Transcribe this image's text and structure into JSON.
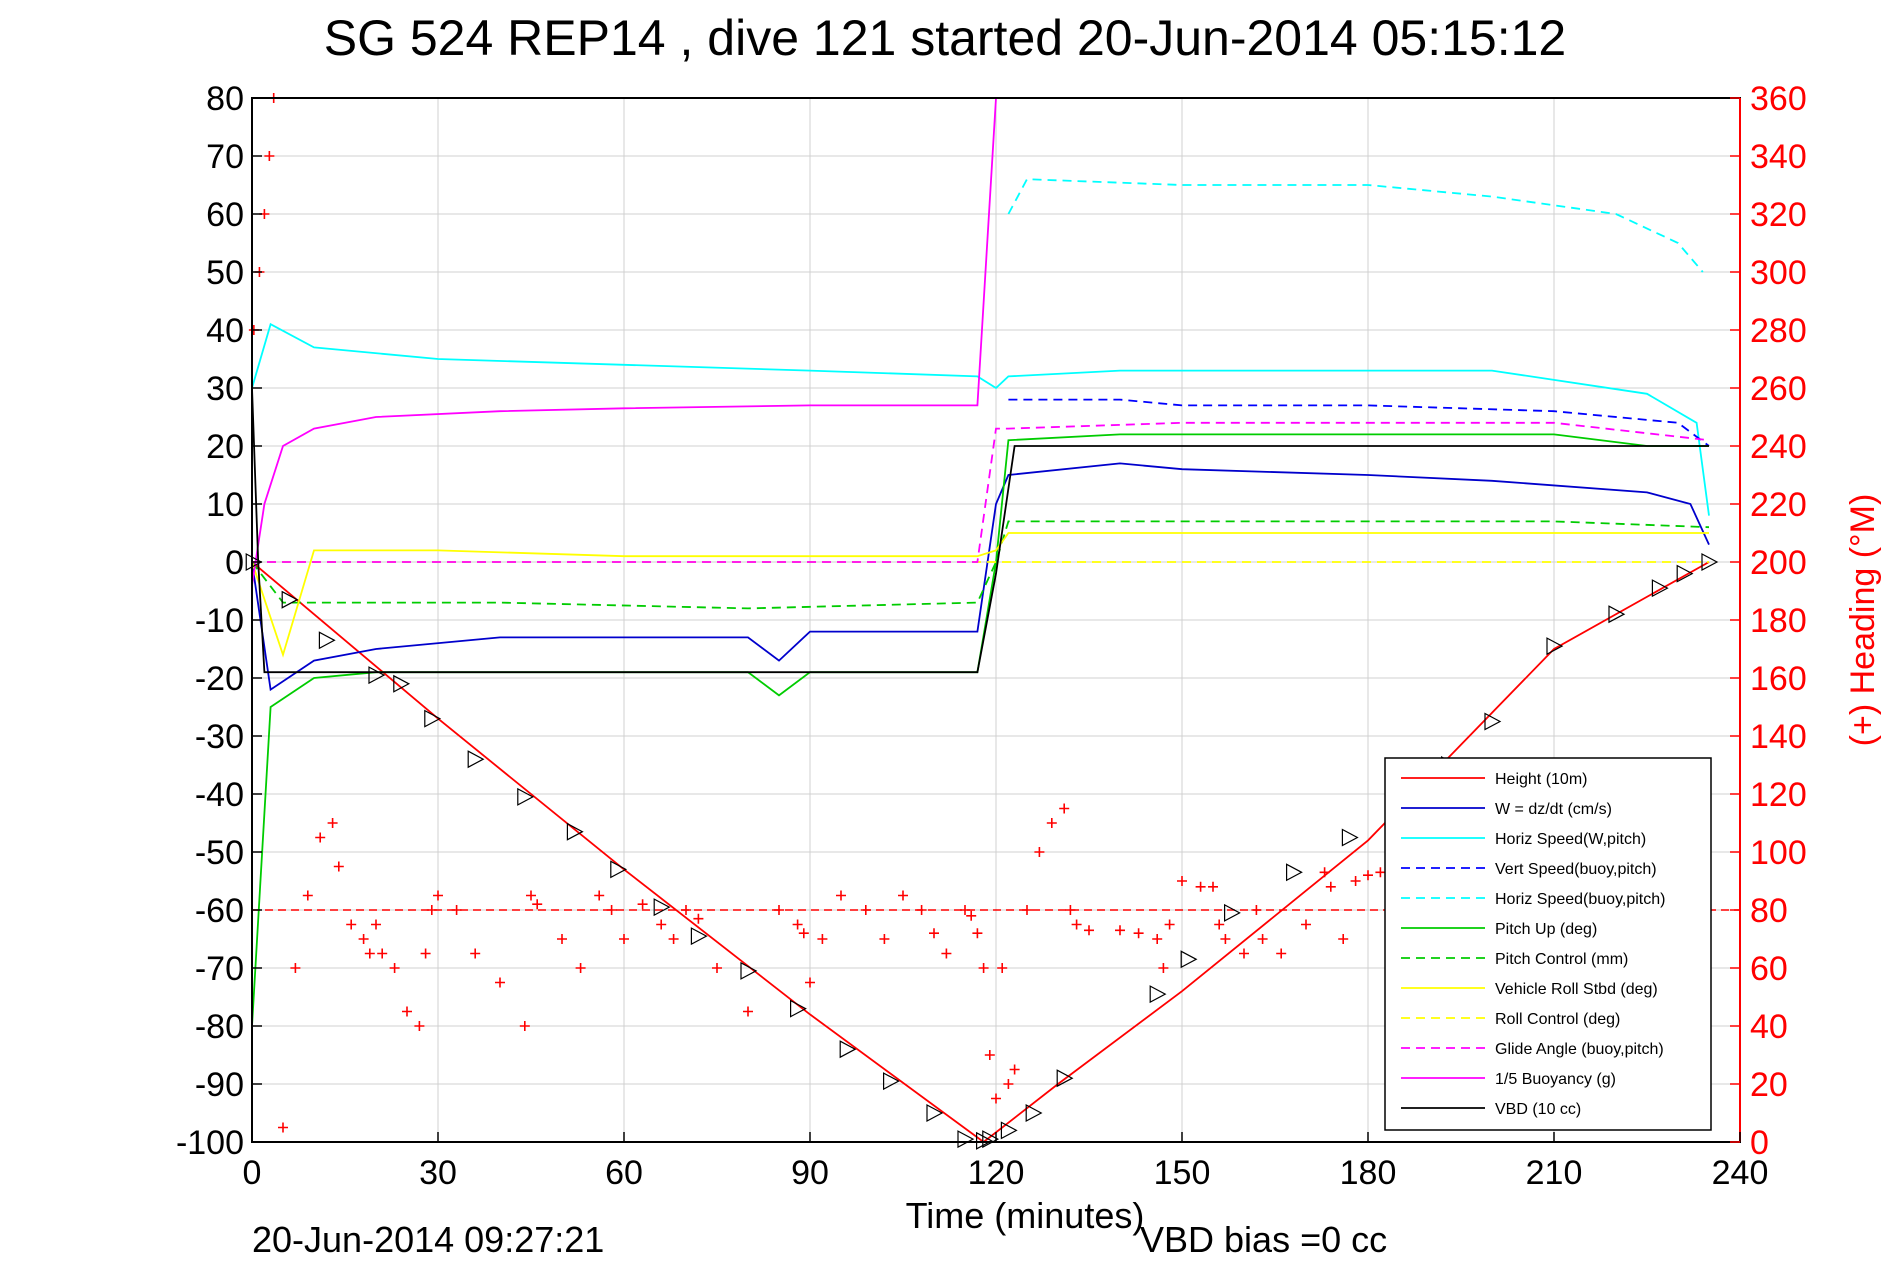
{
  "chart_data": {
    "type": "line",
    "title": "SG 524   REP14  , dive 121 started 20-Jun-2014 05:15:12",
    "xlabel": "Time (minutes)",
    "ylabel_right": "(+) Heading (°M)",
    "xlim": [
      0,
      240
    ],
    "ylim_left": [
      -100,
      80
    ],
    "ylim_right": [
      0,
      360
    ],
    "x_ticks": [
      "0",
      "30",
      "60",
      "90",
      "120",
      "150",
      "180",
      "210",
      "240"
    ],
    "y_ticks_left": [
      "80",
      "70",
      "60",
      "50",
      "40",
      "30",
      "20",
      "10",
      "0",
      "-10",
      "-20",
      "-30",
      "-40",
      "-50",
      "-60",
      "-70",
      "-80",
      "-90",
      "-100"
    ],
    "y_ticks_right": [
      "360",
      "340",
      "320",
      "300",
      "280",
      "260",
      "240",
      "220",
      "200",
      "180",
      "160",
      "140",
      "120",
      "100",
      "80",
      "60",
      "40",
      "20",
      "0"
    ],
    "grid": true,
    "legend_position": "bottom-right",
    "footer_date": "20-Jun-2014 09:27:21",
    "footer_vbd": "VBD bias =0 cc",
    "series": [
      {
        "name": "Height (10m)",
        "color": "#ff0000",
        "dash": "solid",
        "x": [
          0,
          30,
          60,
          90,
          118,
          130,
          150,
          180,
          210,
          235
        ],
        "y": [
          0,
          -27,
          -53,
          -78,
          -100,
          -90,
          -74,
          -48,
          -15,
          0
        ]
      },
      {
        "name": "W = dz/dt (cm/s)",
        "color": "#0000cc",
        "dash": "solid",
        "x": [
          0,
          3,
          10,
          20,
          40,
          60,
          80,
          85,
          90,
          110,
          117,
          120,
          122,
          140,
          150,
          180,
          200,
          225,
          232,
          235
        ],
        "y": [
          0,
          -22,
          -17,
          -15,
          -13,
          -13,
          -13,
          -17,
          -12,
          -12,
          -12,
          10,
          15,
          17,
          16,
          15,
          14,
          12,
          10,
          3
        ]
      },
      {
        "name": "Horiz Speed(W,pitch)",
        "color": "#00ffff",
        "dash": "solid",
        "x": [
          0,
          3,
          10,
          30,
          60,
          90,
          117,
          120,
          122,
          140,
          180,
          200,
          225,
          233,
          235
        ],
        "y": [
          30,
          41,
          37,
          35,
          34,
          33,
          32,
          30,
          32,
          33,
          33,
          33,
          29,
          24,
          8
        ]
      },
      {
        "name": "Vert Speed(buoy,pitch)",
        "color": "#0000ff",
        "dash": "dashed",
        "x": [
          122,
          140,
          150,
          180,
          210,
          230,
          235
        ],
        "y": [
          28,
          28,
          27,
          27,
          26,
          24,
          20
        ]
      },
      {
        "name": "Horiz Speed(buoy,pitch)",
        "color": "#00ffff",
        "dash": "dashed",
        "x": [
          122,
          125,
          150,
          180,
          200,
          220,
          230,
          234
        ],
        "y": [
          60,
          66,
          65,
          65,
          63,
          60,
          55,
          50
        ]
      },
      {
        "name": "Pitch Up (deg)",
        "color": "#00cc00",
        "dash": "solid",
        "x": [
          0,
          3,
          10,
          20,
          40,
          80,
          85,
          90,
          117,
          120,
          122,
          140,
          180,
          210,
          225,
          235
        ],
        "y": [
          -80,
          -25,
          -20,
          -19,
          -19,
          -19,
          -23,
          -19,
          -19,
          0,
          21,
          22,
          22,
          22,
          20,
          20
        ]
      },
      {
        "name": "Pitch Control (mm)",
        "color": "#00cc00",
        "dash": "dashed",
        "x": [
          0,
          5,
          40,
          80,
          117,
          120,
          122,
          140,
          180,
          210,
          235
        ],
        "y": [
          0,
          -7,
          -7,
          -8,
          -7,
          0,
          7,
          7,
          7,
          7,
          6
        ]
      },
      {
        "name": "Vehicle Roll Stbd (deg)",
        "color": "#ffff00",
        "dash": "solid",
        "x": [
          0,
          5,
          10,
          30,
          60,
          90,
          117,
          120,
          122,
          150,
          180,
          210,
          235
        ],
        "y": [
          0,
          -16,
          2,
          2,
          1,
          1,
          1,
          2,
          5,
          5,
          5,
          5,
          5
        ]
      },
      {
        "name": "Roll Control (deg)",
        "color": "#ffff00",
        "dash": "dashed",
        "x": [
          0,
          5,
          60,
          117,
          122,
          180,
          235
        ],
        "y": [
          0,
          0,
          0,
          0,
          0,
          0,
          0
        ]
      },
      {
        "name": "Glide Angle (buoy,pitch)",
        "color": "#ff00ff",
        "dash": "dashed",
        "x": [
          0,
          30,
          60,
          90,
          117,
          120,
          122,
          150,
          180,
          210,
          235
        ],
        "y": [
          0,
          0,
          0,
          0,
          0,
          23,
          23,
          24,
          24,
          24,
          21
        ]
      },
      {
        "name": "1/5 Buoyancy (g)",
        "color": "#ff00ff",
        "dash": "solid",
        "x": [
          0,
          2,
          5,
          10,
          20,
          40,
          60,
          90,
          117,
          120
        ],
        "y": [
          -4,
          10,
          20,
          23,
          25,
          26,
          26.5,
          27,
          27,
          80
        ]
      },
      {
        "name": "VBD (10 cc)",
        "color": "#000000",
        "dash": "solid",
        "x": [
          0,
          1,
          2,
          117,
          120,
          123,
          235
        ],
        "y": [
          30,
          0,
          -19,
          -19,
          -2,
          20,
          20
        ]
      }
    ],
    "heading": {
      "name": "(+) Heading (°M)",
      "color": "#ff0000",
      "marker": "+",
      "x": [
        0.3,
        1.2,
        2,
        2.8,
        3.5,
        5,
        7,
        9,
        11,
        13,
        14,
        16,
        18,
        19,
        20,
        21,
        23,
        25,
        27,
        28,
        29,
        30,
        33,
        36,
        40,
        44,
        45,
        46,
        50,
        53,
        56,
        58,
        60,
        63,
        66,
        68,
        70,
        72,
        75,
        80,
        85,
        88,
        89,
        90,
        92,
        95,
        99,
        102,
        105,
        108,
        110,
        112,
        115,
        116,
        117,
        118,
        119,
        120,
        121,
        122,
        123,
        125,
        127,
        129,
        131,
        132,
        133,
        135,
        140,
        143,
        146,
        147,
        148,
        150,
        153,
        155,
        156,
        157,
        160,
        162,
        163,
        166,
        170,
        173,
        174,
        176,
        178,
        180,
        182,
        184,
        186,
        190,
        193,
        196,
        199,
        202,
        204
      ],
      "y": [
        280,
        300,
        320,
        340,
        360,
        5,
        60,
        85,
        105,
        110,
        95,
        75,
        70,
        65,
        75,
        65,
        60,
        45,
        40,
        65,
        80,
        85,
        80,
        65,
        55,
        40,
        85,
        82,
        70,
        60,
        85,
        80,
        70,
        82,
        75,
        70,
        80,
        77,
        60,
        45,
        80,
        75,
        72,
        55,
        70,
        85,
        80,
        70,
        85,
        80,
        72,
        65,
        80,
        78,
        72,
        60,
        30,
        15,
        60,
        20,
        25,
        80,
        100,
        110,
        115,
        80,
        75,
        73,
        73,
        72,
        70,
        60,
        75,
        90,
        88,
        88,
        75,
        70,
        65,
        80,
        70,
        65,
        75,
        93,
        88,
        70,
        90,
        92,
        93,
        90,
        95,
        95,
        92,
        97,
        95,
        95,
        93
      ]
    },
    "heading_ref": {
      "y": 80,
      "color": "#ff0000",
      "dash": "dashed"
    },
    "markers": {
      "x": [
        0.2,
        6,
        12,
        20,
        24,
        29,
        36,
        44,
        52,
        59,
        66,
        72,
        80,
        88,
        96,
        103,
        110,
        115,
        118,
        119,
        122,
        126,
        131,
        146,
        151,
        158,
        168,
        177,
        184,
        193,
        200,
        210,
        220,
        227,
        231,
        235
      ],
      "y": [
        0,
        -6.5,
        -13.5,
        -19.5,
        -21,
        -27,
        -34,
        -40.5,
        -46.5,
        -53,
        -59.5,
        -64.5,
        -70.5,
        -77,
        -84,
        -89.5,
        -95,
        -99.5,
        -99.8,
        -99.5,
        -98,
        -95,
        -89,
        -74.5,
        -68.5,
        -60.5,
        -53.5,
        -47.5,
        -41,
        -35,
        -27.5,
        -14.5,
        -9,
        -4.5,
        -2,
        0
      ]
    }
  }
}
